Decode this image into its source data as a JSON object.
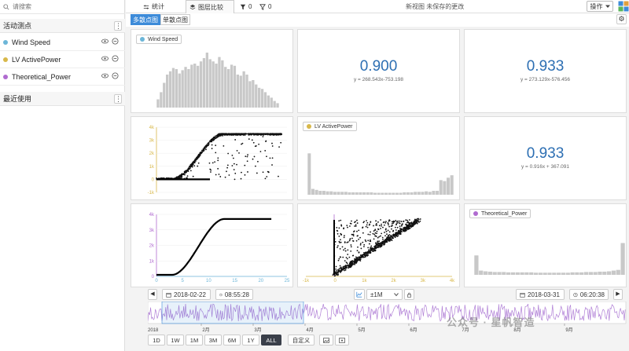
{
  "sidebar": {
    "search_placeholder": "请搜索",
    "active_title": "活动测点",
    "recent_title": "最近使用",
    "menu_glyph": "⋮",
    "items": [
      {
        "label": "Wind Speed",
        "color": "#6cb6d8"
      },
      {
        "label": "LV ActivePower",
        "color": "#d8b84a"
      },
      {
        "label": "Theoretical_Power",
        "color": "#b06bd0"
      }
    ]
  },
  "topbar": {
    "stats_label": "统计",
    "compare_label": "图层比较",
    "filter1_count": "0",
    "filter2_count": "0",
    "view_title": "新视图 未保存的更改",
    "actions_label": "操作"
  },
  "subbar": {
    "multi_label": "多散点图",
    "single_label": "单散点图",
    "settings_glyph": "⚙"
  },
  "panels": {
    "wind_legend": "Wind Speed",
    "lv_legend": "LV ActivePower",
    "theo_legend": "Theoretical_Power",
    "corr1": {
      "value": "0.900",
      "equation": "y = 268.543x-753.198"
    },
    "corr2": {
      "value": "0.933",
      "equation": "y = 273.129x-576.456"
    },
    "corr3": {
      "value": "0.933",
      "equation": "y = 0.916x + 367.091"
    },
    "lv_axis": [
      "4k",
      "3k",
      "2k",
      "1k",
      "0",
      "-1k"
    ],
    "theo_axis": [
      "4k",
      "3k",
      "2k",
      "1k",
      "0"
    ],
    "wind_x_ticks": [
      "0",
      "5",
      "10",
      "15",
      "20",
      "25"
    ],
    "lv_x_ticks": [
      "-1k",
      "0",
      "1k",
      "2k",
      "3k",
      "4k"
    ]
  },
  "timeline": {
    "start_date": "2018-02-22",
    "start_time": "08:55:28",
    "zoom": "±1M",
    "end_date": "2018-03-31",
    "end_time": "06:20:38",
    "year_label": "2018",
    "months": [
      "2月",
      "3月",
      "4月",
      "5月",
      "6月",
      "7月",
      "8月",
      "9月"
    ],
    "ranges": [
      "1D",
      "1W",
      "1M",
      "3M",
      "6M",
      "1Y",
      "ALL"
    ],
    "custom_label": "自定义",
    "selected_range": "ALL"
  },
  "watermark": "公众号 · 星帆智造",
  "colors": {
    "accent": "#3d8bd9",
    "bar": "#c8c8c8",
    "wind_axis": "#6cb6d8",
    "lv_axis": "#d8b84a",
    "theo_axis": "#b06bd0",
    "timeline": "#b07fd6"
  }
}
